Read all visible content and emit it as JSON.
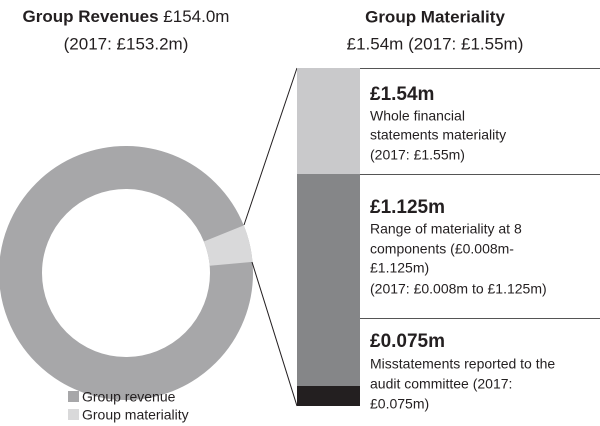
{
  "left": {
    "title_bold": "Group Revenues",
    "title_value": "£154.0m",
    "subtitle": "(2017: £153.2m)"
  },
  "right": {
    "title": "Group Materiality",
    "subtitle": "£1.54m (2017: £1.55m)"
  },
  "items": [
    {
      "value": "£1.54m",
      "lines": [
        "Whole financial",
        "statements materiality",
        "(2017: £1.55m)"
      ]
    },
    {
      "value": "£1.125m",
      "lines": [
        "Range of materiality at 8",
        "components (£0.008m-",
        "£1.125m)",
        "(2017: £0.008m to £1.125m)"
      ]
    },
    {
      "value": "£0.075m",
      "lines": [
        "Misstatements reported to the",
        "audit committee (2017:",
        "£0.075m)"
      ]
    }
  ],
  "legend": [
    "Group revenue",
    "Group materiality"
  ]
}
